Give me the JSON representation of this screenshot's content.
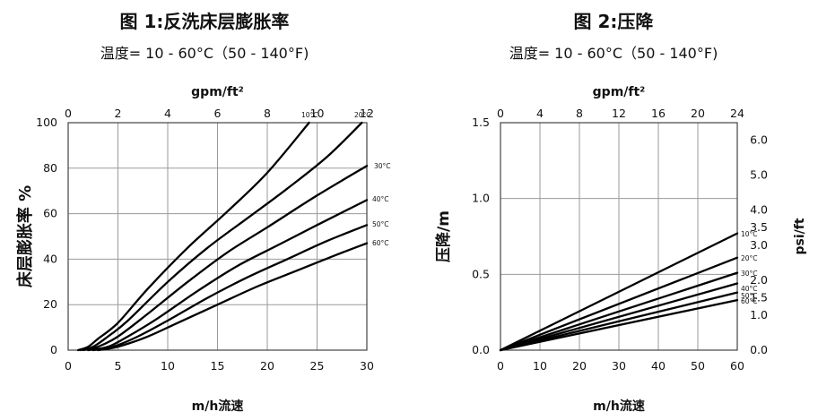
{
  "chart_data": [
    {
      "type": "line",
      "title": "图 1:反洗床层膨胀率",
      "subtitle": "温度= 10 - 60°C（50 - 140°F)",
      "xlabel": "m/h流速",
      "ylabel": "床层膨胀率 %",
      "x2label": "gpm/ft²",
      "xlim": [
        0,
        30
      ],
      "ylim": [
        0,
        100
      ],
      "x2lim": [
        0,
        12
      ],
      "x_ticks": [
        "0",
        "5",
        "10",
        "15",
        "20",
        "25",
        "30"
      ],
      "y_ticks": [
        "0",
        "20",
        "40",
        "60",
        "80",
        "100"
      ],
      "x2_ticks": [
        "0",
        "2",
        "4",
        "6",
        "8",
        "10",
        "12"
      ],
      "grid": true,
      "series": [
        {
          "name": "10°C",
          "x": [
            1,
            2,
            3,
            5,
            8,
            12,
            16,
            20,
            24.2
          ],
          "y": [
            0,
            1.5,
            5,
            12,
            27,
            45,
            61,
            78,
            100
          ]
        },
        {
          "name": "20°C",
          "x": [
            1.2,
            2.5,
            4,
            6,
            10,
            14,
            18,
            22,
            26,
            29.5
          ],
          "y": [
            0,
            1.5,
            6,
            13,
            30,
            45,
            58,
            71,
            85,
            100
          ]
        },
        {
          "name": "30°C",
          "x": [
            1.5,
            3,
            5,
            8,
            12,
            16,
            20,
            25,
            30
          ],
          "y": [
            0,
            1.5,
            6,
            16,
            30,
            43,
            54,
            68,
            81
          ]
        },
        {
          "name": "40°C",
          "x": [
            2,
            4,
            6,
            9,
            13,
            17,
            21,
            25,
            30
          ],
          "y": [
            0,
            1.5,
            6,
            14,
            26,
            37,
            46,
            55,
            66
          ]
        },
        {
          "name": "50°C",
          "x": [
            2.5,
            4.5,
            7,
            10,
            14,
            18,
            22,
            26,
            30
          ],
          "y": [
            0,
            1.5,
            6,
            13,
            23,
            32,
            40,
            48,
            55
          ]
        },
        {
          "name": "60°C",
          "x": [
            3,
            5,
            8,
            11,
            15,
            19,
            23,
            27,
            30
          ],
          "y": [
            0,
            1.5,
            6,
            12,
            20,
            28,
            35,
            42,
            47
          ]
        }
      ]
    },
    {
      "type": "line",
      "title": "图 2:压降",
      "subtitle": "温度= 10 - 60°C（50 - 140°F)",
      "xlabel": "m/h流速",
      "ylabel": "压降/m",
      "y2label": "psi/ft",
      "x2label": "gpm/ft²",
      "xlim": [
        0,
        60
      ],
      "ylim": [
        0,
        1.5
      ],
      "x2lim": [
        0,
        24
      ],
      "y2lim": [
        0,
        6.5
      ],
      "x_ticks": [
        "0",
        "10",
        "20",
        "30",
        "40",
        "50",
        "60"
      ],
      "y_ticks": [
        "0.0",
        "0.5",
        "1.0",
        "1.5"
      ],
      "x2_ticks": [
        "0",
        "4",
        "8",
        "12",
        "16",
        "20",
        "24"
      ],
      "y2_ticks": [
        "0.0",
        "1.0",
        "1.5",
        "2.0",
        "3.0",
        "3.5",
        "4.0",
        "5.0",
        "6.0"
      ],
      "grid": true,
      "series": [
        {
          "name": "10°C",
          "x": [
            0,
            60
          ],
          "y": [
            0,
            0.77
          ]
        },
        {
          "name": "20°C",
          "x": [
            0,
            60
          ],
          "y": [
            0,
            0.61
          ]
        },
        {
          "name": "30°C",
          "x": [
            0,
            60
          ],
          "y": [
            0,
            0.51
          ]
        },
        {
          "name": "40°C",
          "x": [
            0,
            60
          ],
          "y": [
            0,
            0.44
          ]
        },
        {
          "name": "50°C",
          "x": [
            0,
            60
          ],
          "y": [
            0,
            0.38
          ]
        },
        {
          "name": "60°C",
          "x": [
            0,
            60
          ],
          "y": [
            0,
            0.33
          ]
        }
      ]
    }
  ]
}
